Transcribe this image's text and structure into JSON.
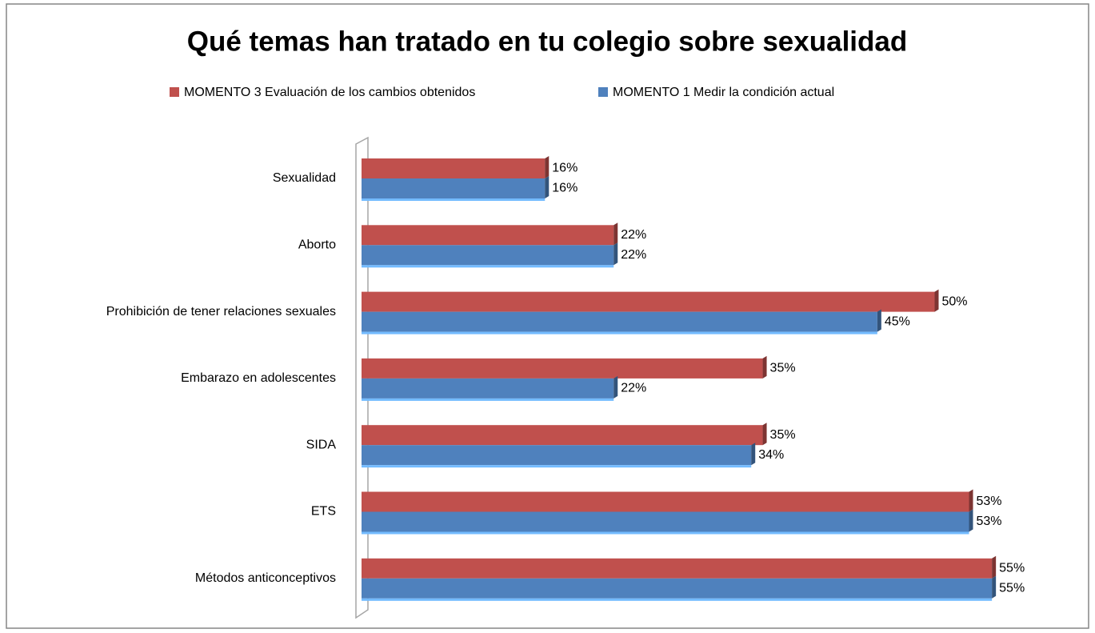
{
  "chart_data": {
    "type": "bar",
    "orientation": "horizontal",
    "title": "Qué temas han tratado en tu colegio sobre sexualidad",
    "categories": [
      "Sexualidad",
      "Aborto",
      "Prohibición de tener relaciones sexuales",
      "Embarazo en adolescentes",
      "SIDA",
      "ETS",
      "Métodos anticonceptivos"
    ],
    "series": [
      {
        "name": "MOMENTO 3 Evaluación de los cambios obtenidos",
        "color": "#c0504d",
        "values": [
          16,
          22,
          50,
          35,
          35,
          53,
          55
        ],
        "value_labels": [
          "16%",
          "22%",
          "50%",
          "35%",
          "35%",
          "53%",
          "55%"
        ]
      },
      {
        "name": "MOMENTO 1 Medir la condición actual",
        "color": "#4f81bd",
        "values": [
          16,
          22,
          45,
          22,
          34,
          53,
          55
        ],
        "value_labels": [
          "16%",
          "22%",
          "45%",
          "22%",
          "34%",
          "53%",
          "55%"
        ]
      }
    ],
    "legend": "top"
  }
}
